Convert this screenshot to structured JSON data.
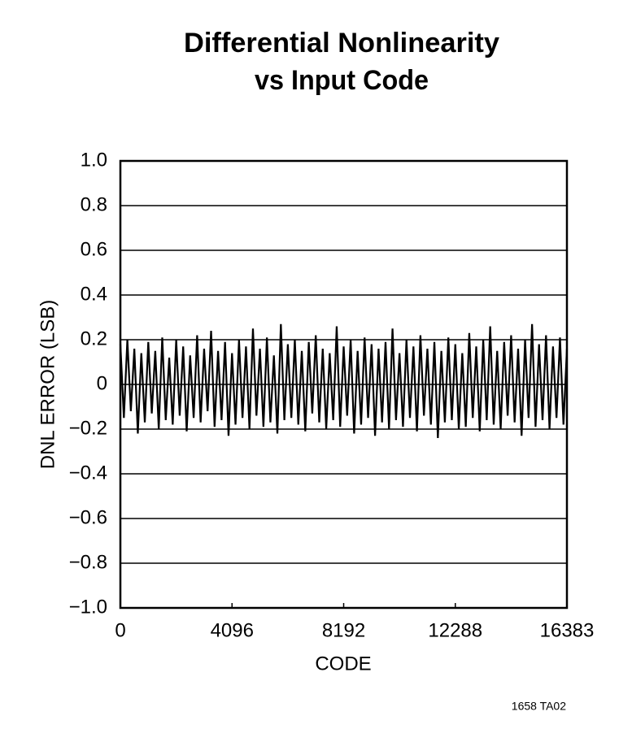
{
  "chart_data": {
    "type": "line",
    "title": "Differential Nonlinearity",
    "subtitle": "vs Input Code",
    "x_label": "CODE",
    "y_label": "DNL ERROR (LSB)",
    "footnote": "1658 TA02",
    "xlim": [
      0,
      16383
    ],
    "xticks": [
      0,
      4096,
      8192,
      12288,
      16383
    ],
    "ylim": [
      -1.0,
      1.0
    ],
    "yticks": [
      {
        "value": -1.0,
        "label": "−1.0"
      },
      {
        "value": -0.8,
        "label": "−0.8"
      },
      {
        "value": -0.6,
        "label": "−0.6"
      },
      {
        "value": -0.4,
        "label": "−0.4"
      },
      {
        "value": -0.2,
        "label": "−0.2"
      },
      0,
      0.2,
      0.4,
      0.6,
      0.8,
      {
        "value": 1.0,
        "label": "1.0"
      }
    ],
    "grid": true,
    "x": [
      0,
      128,
      256,
      384,
      512,
      640,
      768,
      896,
      1024,
      1152,
      1280,
      1408,
      1536,
      1664,
      1792,
      1920,
      2048,
      2176,
      2304,
      2432,
      2560,
      2688,
      2816,
      2944,
      3072,
      3200,
      3328,
      3456,
      3584,
      3712,
      3840,
      3968,
      4096,
      4224,
      4352,
      4480,
      4608,
      4736,
      4864,
      4992,
      5120,
      5248,
      5376,
      5504,
      5632,
      5760,
      5888,
      6016,
      6144,
      6272,
      6400,
      6528,
      6656,
      6784,
      6912,
      7040,
      7168,
      7296,
      7424,
      7552,
      7680,
      7808,
      7936,
      8064,
      8192,
      8320,
      8448,
      8576,
      8704,
      8832,
      8960,
      9088,
      9216,
      9344,
      9472,
      9600,
      9728,
      9856,
      9984,
      10112,
      10240,
      10368,
      10496,
      10624,
      10752,
      10880,
      11008,
      11136,
      11264,
      11392,
      11520,
      11648,
      11776,
      11904,
      12032,
      12160,
      12288,
      12416,
      12544,
      12672,
      12800,
      12928,
      13056,
      13184,
      13312,
      13440,
      13568,
      13696,
      13824,
      13952,
      14080,
      14208,
      14336,
      14464,
      14592,
      14720,
      14848,
      14976,
      15104,
      15232,
      15360,
      15488,
      15616,
      15744,
      15872,
      16000,
      16128,
      16256,
      16383
    ],
    "series": [
      {
        "color": "#000000",
        "values": [
          0.18,
          -0.15,
          0.2,
          -0.12,
          0.16,
          -0.22,
          0.14,
          -0.17,
          0.19,
          -0.13,
          0.15,
          -0.2,
          0.21,
          -0.16,
          0.12,
          -0.18,
          0.2,
          -0.14,
          0.17,
          -0.21,
          0.13,
          -0.15,
          0.22,
          -0.17,
          0.16,
          -0.12,
          0.24,
          -0.19,
          0.15,
          -0.16,
          0.19,
          -0.23,
          0.14,
          -0.18,
          0.2,
          -0.15,
          0.17,
          -0.2,
          0.25,
          -0.14,
          0.16,
          -0.19,
          0.21,
          -0.17,
          0.13,
          -0.22,
          0.27,
          -0.16,
          0.18,
          -0.15,
          0.2,
          -0.18,
          0.15,
          -0.21,
          0.19,
          -0.13,
          0.22,
          -0.17,
          0.16,
          -0.2,
          0.14,
          -0.16,
          0.26,
          -0.19,
          0.17,
          -0.14,
          0.2,
          -0.22,
          0.15,
          -0.18,
          0.21,
          -0.15,
          0.18,
          -0.23,
          0.16,
          -0.17,
          0.19,
          -0.2,
          0.25,
          -0.16,
          0.14,
          -0.19,
          0.2,
          -0.15,
          0.17,
          -0.21,
          0.22,
          -0.14,
          0.16,
          -0.18,
          0.19,
          -0.24,
          0.15,
          -0.17,
          0.21,
          -0.16,
          0.18,
          -0.2,
          0.14,
          -0.19,
          0.23,
          -0.15,
          0.17,
          -0.21,
          0.2,
          -0.16,
          0.26,
          -0.18,
          0.15,
          -0.2,
          0.19,
          -0.14,
          0.22,
          -0.17,
          0.16,
          -0.23,
          0.2,
          -0.15,
          0.27,
          -0.19,
          0.18,
          -0.16,
          0.22,
          -0.2,
          0.17,
          -0.15,
          0.21,
          -0.18,
          0.16
        ]
      }
    ]
  }
}
